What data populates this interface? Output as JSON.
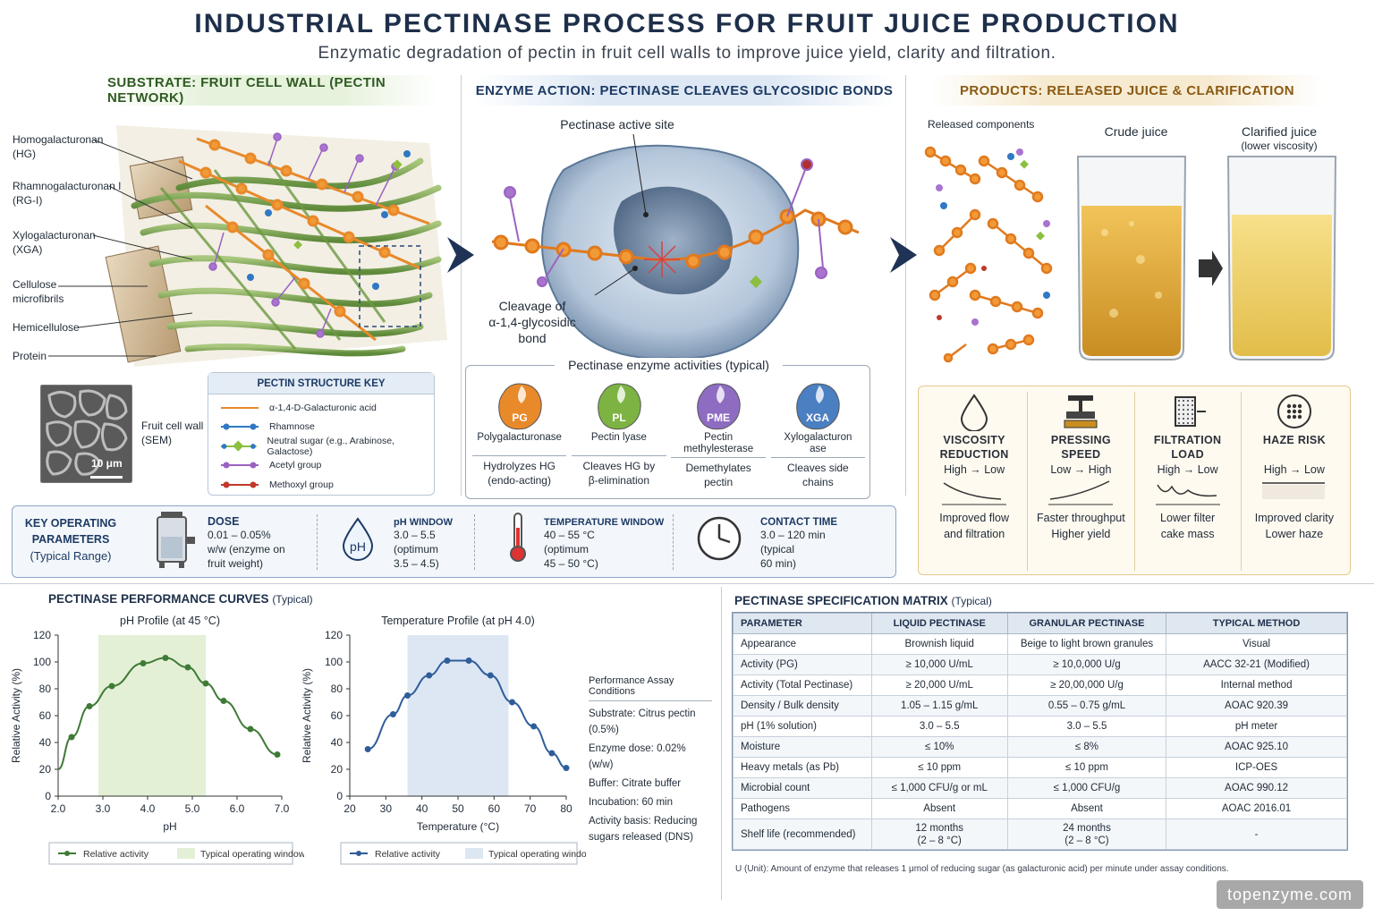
{
  "header": {
    "title": "INDUSTRIAL PECTINASE PROCESS FOR FRUIT JUICE PRODUCTION",
    "subtitle": "Enzymatic degradation of pectin in fruit cell walls to improve juice yield, clarity and filtration."
  },
  "sections": {
    "substrate": "SUBSTRATE: FRUIT CELL WALL (PECTIN NETWORK)",
    "enzyme": "ENZYME ACTION: PECTINASE CLEAVES GLYCOSIDIC BONDS",
    "products": "PRODUCTS: RELEASED JUICE & CLARIFICATION"
  },
  "cell_wall_labels": [
    {
      "text": "Homogalacturonan\n(HG)"
    },
    {
      "text": "Rhamnogalacturonan I\n(RG-I)"
    },
    {
      "text": "Xylogalacturonan\n(XGA)"
    },
    {
      "text": "Cellulose\nmicrofibrils"
    },
    {
      "text": "Hemicellulose"
    },
    {
      "text": "Protein"
    }
  ],
  "sem": {
    "caption": "Fruit cell wall\n(SEM)",
    "scale": "10 μm"
  },
  "structure_key": {
    "title": "PECTIN STRUCTURE KEY",
    "items": [
      {
        "label": "α-1,4-D-Galacturonic acid",
        "color": "#e8892a"
      },
      {
        "label": "Rhamnose",
        "color": "#2f78c4"
      },
      {
        "label": "Neutral sugar (e.g., Arabinose, Galactose)",
        "color": "#8cbf3f"
      },
      {
        "label": "Acetyl group",
        "color": "#9a63c2"
      },
      {
        "label": "Methoxyl group",
        "color": "#c0392b"
      }
    ]
  },
  "enzyme_figure": {
    "active_site": "Pectinase active site",
    "cleavage": "Cleavage of\nα-1,4-glycosidic\nbond"
  },
  "activities": {
    "title": "Pectinase enzyme activities (typical)",
    "items": [
      {
        "abbr": "PG",
        "name": "Polygalacturonase",
        "desc": "Hydrolyzes HG\n(endo-acting)",
        "color": "#e8892a"
      },
      {
        "abbr": "PL",
        "name": "Pectin lyase",
        "desc": "Cleaves HG by\nβ-elimination",
        "color": "#7cb342"
      },
      {
        "abbr": "PME",
        "name": "Pectin methylesterase",
        "desc": "Demethylates\npectin",
        "color": "#8e6cc2"
      },
      {
        "abbr": "XGA",
        "name": "Xylogalacturon\nase",
        "desc": "Cleaves side\nchains",
        "color": "#4a7fc1"
      }
    ]
  },
  "operating": {
    "title": "KEY OPERATING\nPARAMETERS",
    "subtitle": "(Typical Range)",
    "dose": {
      "title": "DOSE",
      "value": "0.01 – 0.05%\nw/w (enzyme on\nfruit weight)"
    },
    "ph": {
      "title": "pH WINDOW",
      "value": "3.0 – 5.5\n(optimum\n3.5 – 4.5)",
      "icon_text": "pH"
    },
    "temp": {
      "title": "TEMPERATURE WINDOW",
      "value": "40 – 55 °C\n(optimum\n45 – 50 °C)"
    },
    "time": {
      "title": "CONTACT TIME",
      "value": "3.0 – 120 min\n(typical\n60 min)"
    }
  },
  "products": {
    "released": "Released components",
    "crude": "Crude juice",
    "clarified": "Clarified juice",
    "clarified_note": "(lower viscosity)",
    "benefits": [
      {
        "title": "VISCOSITY\nREDUCTION",
        "trend": "High → Low",
        "result": "Improved flow\nand filtration",
        "icon": "drop-icon"
      },
      {
        "title": "PRESSING\nSPEED",
        "trend": "Low → High",
        "result": "Faster throughput\nHigher yield",
        "icon": "press-icon"
      },
      {
        "title": "FILTRATION\nLOAD",
        "trend": "High → Low",
        "result": "Lower filter\ncake mass",
        "icon": "filter-icon"
      },
      {
        "title": "HAZE RISK",
        "trend": "High → Low",
        "result": "Improved clarity\nLower haze",
        "icon": "haze-icon"
      }
    ]
  },
  "curves": {
    "title": "PECTINASE PERFORMANCE CURVES",
    "title_note": "(Typical)"
  },
  "chart_data": [
    {
      "type": "line",
      "title": "pH Profile (at 45 °C)",
      "xlabel": "pH",
      "ylabel": "Relative Activity (%)",
      "xlim": [
        2.0,
        7.0
      ],
      "ylim": [
        0,
        120
      ],
      "xticks": [
        "2.0",
        "3.0",
        "4.0",
        "5.0",
        "6.0",
        "7.0"
      ],
      "yticks": [
        0,
        20,
        40,
        60,
        80,
        100,
        120
      ],
      "x": [
        2.3,
        2.7,
        3.2,
        3.9,
        4.4,
        4.9,
        5.3,
        5.7,
        6.3,
        6.9
      ],
      "values": [
        44,
        67,
        82,
        99,
        103,
        96,
        84,
        71,
        50,
        31
      ],
      "curve_start": [
        2.0,
        20
      ],
      "window": [
        2.9,
        5.3
      ],
      "color": "#3f7a36",
      "window_color": "#e3f0d6",
      "legend": [
        "Relative activity",
        "Typical operating window"
      ]
    },
    {
      "type": "line",
      "title": "Temperature Profile (at pH 4.0)",
      "xlabel": "Temperature (°C)",
      "ylabel": "Relative Activity (%)",
      "xlim": [
        20,
        80
      ],
      "ylim": [
        0,
        120
      ],
      "xticks": [
        "20",
        "30",
        "40",
        "50",
        "60",
        "70",
        "80"
      ],
      "yticks": [
        0,
        20,
        40,
        60,
        80,
        100,
        120
      ],
      "x": [
        25,
        32,
        36,
        42,
        47,
        53,
        59,
        65,
        71,
        76,
        80
      ],
      "values": [
        35,
        61,
        75,
        90,
        101,
        101,
        90,
        70,
        52,
        32,
        21
      ],
      "window": [
        36,
        64
      ],
      "color": "#2f5d9a",
      "window_color": "#dde7f3",
      "legend": [
        "Relative activity",
        "Typical operating window"
      ]
    }
  ],
  "assay": {
    "title": "Performance Assay Conditions",
    "lines": [
      "Substrate: Citrus pectin (0.5%)",
      "Enzyme dose: 0.02% (w/w)",
      "Buffer: Citrate buffer",
      "Incubation: 60 min",
      "Activity basis: Reducing\nsugars released (DNS)"
    ]
  },
  "spec": {
    "title": "PECTINASE SPECIFICATION MATRIX",
    "title_note": "(Typical)",
    "headers": [
      "PARAMETER",
      "LIQUID PECTINASE",
      "GRANULAR PECTINASE",
      "TYPICAL METHOD"
    ],
    "rows": [
      [
        "Appearance",
        "Brownish liquid",
        "Beige to light brown granules",
        "Visual"
      ],
      [
        "Activity (PG)",
        "≥ 10,000 U/mL",
        "≥ 10,0,000 U/g",
        "AACC 32-21 (Modified)"
      ],
      [
        "Activity (Total Pectinase)",
        "≥ 20,000 U/mL",
        "≥ 20,00,000 U/g",
        "Internal method"
      ],
      [
        "Density / Bulk density",
        "1.05 – 1.15 g/mL",
        "0.55 – 0.75 g/mL",
        "AOAC 920.39"
      ],
      [
        "pH (1% solution)",
        "3.0 – 5.5",
        "3.0 – 5.5",
        "pH meter"
      ],
      [
        "Moisture",
        "≤ 10%",
        "≤ 8%",
        "AOAC 925.10"
      ],
      [
        "Heavy metals (as Pb)",
        "≤ 10 ppm",
        "≤ 10 ppm",
        "ICP-OES"
      ],
      [
        "Microbial count",
        "≤ 1,000 CFU/g or mL",
        "≤ 1,000 CFU/g",
        "AOAC 990.12"
      ],
      [
        "Pathogens",
        "Absent",
        "Absent",
        "AOAC 2016.01"
      ],
      [
        "Shelf life (recommended)",
        "12 months\n(2 – 8 °C)",
        "24 months\n(2 – 8 °C)",
        "-"
      ]
    ],
    "footnote": "U (Unit): Amount of enzyme that releases 1 μmol of reducing sugar (as galacturonic acid) per minute under assay conditions."
  },
  "watermark": "topenzyme.com"
}
